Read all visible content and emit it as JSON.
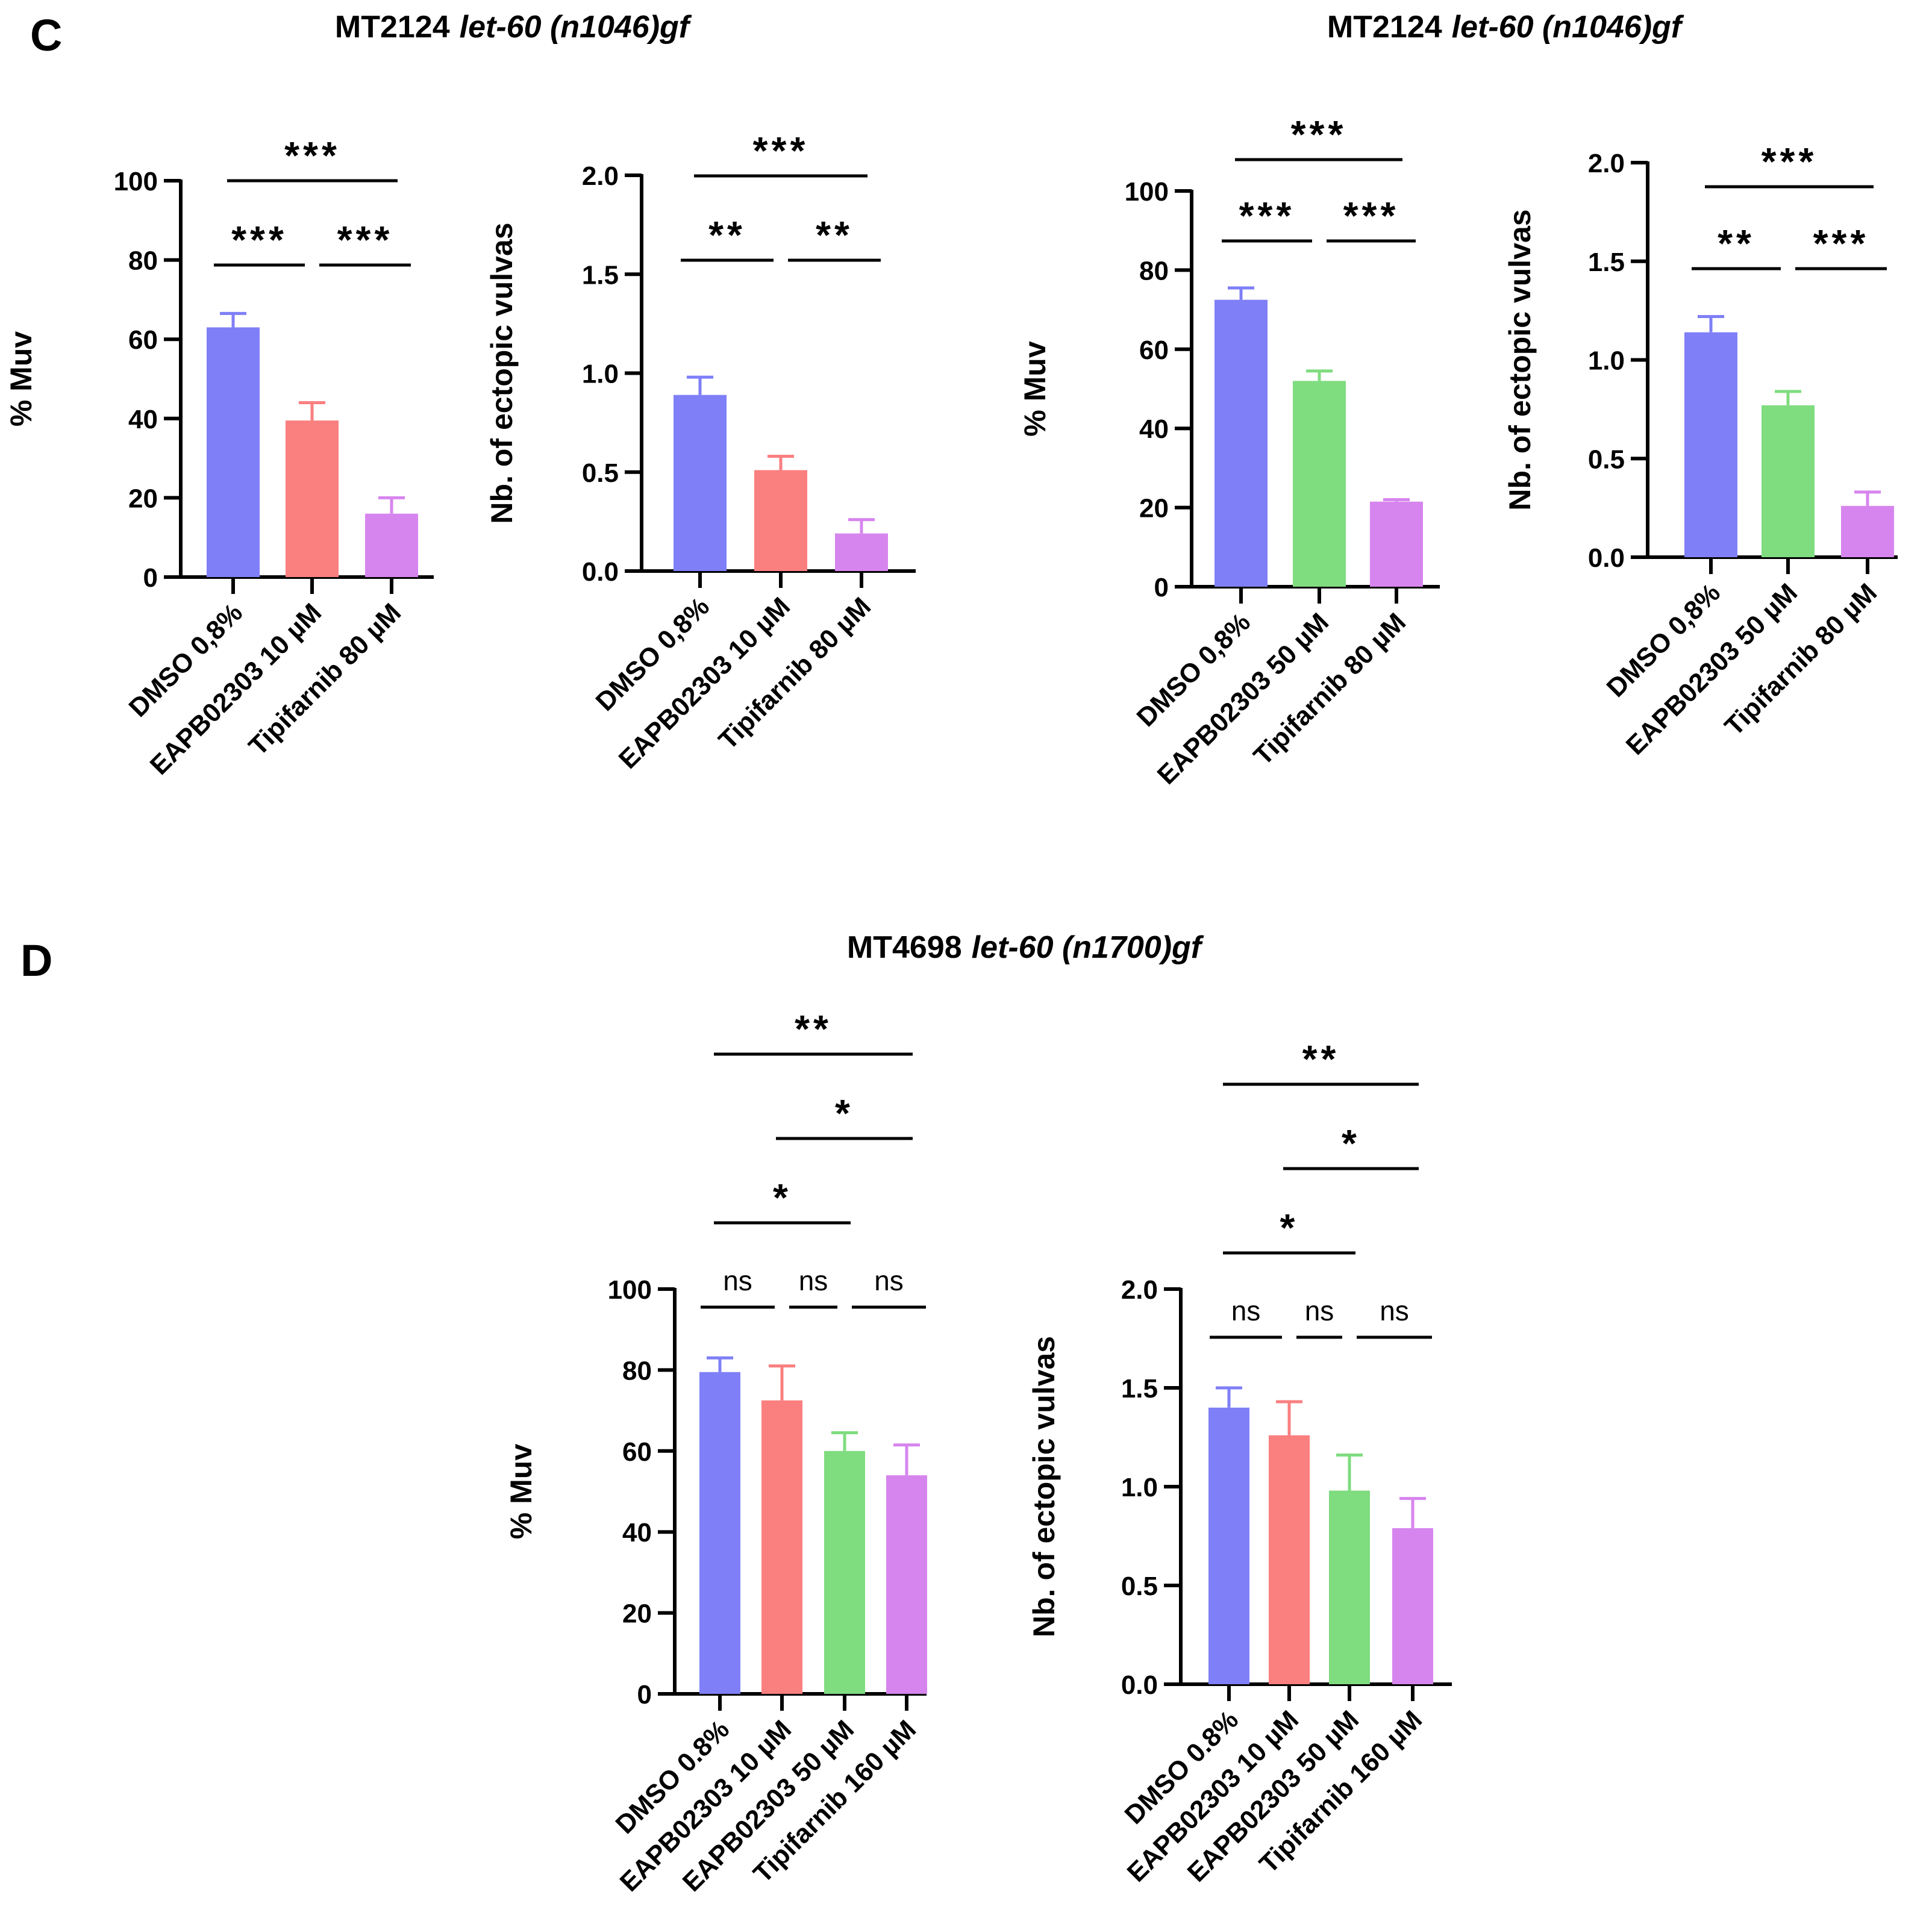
{
  "panels": [
    {
      "letter": "C",
      "title_main": "MT2124",
      "title_italic": "let-60 (n1046)gf"
    },
    {
      "letter": "",
      "title_main": "MT2124",
      "title_italic": "let-60 (n1046)gf"
    },
    {
      "letter": "D",
      "title_main": "MT4698",
      "title_italic": "let-60 (n1700)gf"
    }
  ],
  "colors": {
    "blue": "#7f7ff7",
    "red": "#fa7f7f",
    "green": "#7fdc7f",
    "purple": "#d785ee"
  },
  "chart_data": [
    {
      "type": "bar",
      "panel": "C",
      "title": "MT2124 let-60 (n1046)gf",
      "ylabel": "% Muv",
      "ylim": [
        0,
        100
      ],
      "yticks": [
        "0",
        "20",
        "40",
        "60",
        "80",
        "100"
      ],
      "ytick_values": [
        0,
        20,
        40,
        60,
        80,
        100
      ],
      "categories": [
        "DMSO 0,8%",
        "EAPB02303 10 µM",
        "Tipifarnib 80 µM"
      ],
      "values": [
        63,
        39.5,
        16
      ],
      "errors": [
        3.5,
        4.5,
        4
      ],
      "colors": [
        "#7f7ff7",
        "#fa7f7f",
        "#d785ee"
      ],
      "significance": [
        {
          "from": 0,
          "to": 2,
          "level": 2,
          "label": "***"
        },
        {
          "from": 0,
          "to": 1,
          "level": 1,
          "label": "***"
        },
        {
          "from": 1,
          "to": 2,
          "level": 1,
          "label": "***"
        }
      ]
    },
    {
      "type": "bar",
      "panel": "C",
      "title": "MT2124 let-60 (n1046)gf",
      "ylabel": "Nb. of ectopic vulvas",
      "ylim": [
        0,
        2
      ],
      "yticks": [
        "0.0",
        "0.5",
        "1.0",
        "1.5",
        "2.0"
      ],
      "ytick_values": [
        0,
        0.5,
        1,
        1.5,
        2
      ],
      "categories": [
        "DMSO 0,8%",
        "EAPB02303 10 µM",
        "Tipifarnib 80 µM"
      ],
      "values": [
        0.89,
        0.51,
        0.19
      ],
      "errors": [
        0.09,
        0.07,
        0.07
      ],
      "colors": [
        "#7f7ff7",
        "#fa7f7f",
        "#d785ee"
      ],
      "significance": [
        {
          "from": 0,
          "to": 2,
          "level": 2,
          "label": "***"
        },
        {
          "from": 0,
          "to": 1,
          "level": 1,
          "label": "**"
        },
        {
          "from": 1,
          "to": 2,
          "level": 1,
          "label": "**"
        }
      ]
    },
    {
      "type": "bar",
      "panel": "C",
      "title": "MT2124 let-60 (n1046)gf",
      "ylabel": "% Muv",
      "ylim": [
        0,
        100
      ],
      "yticks": [
        "0",
        "20",
        "40",
        "60",
        "80",
        "100"
      ],
      "ytick_values": [
        0,
        20,
        40,
        60,
        80,
        100
      ],
      "categories": [
        "DMSO 0,8%",
        "EAPB02303 50 µM",
        "Tipifarnib 80 µM"
      ],
      "values": [
        72.5,
        52,
        21.5
      ],
      "errors": [
        3,
        2.5,
        0.5
      ],
      "colors": [
        "#7f7ff7",
        "#7fdc7f",
        "#d785ee"
      ],
      "significance": [
        {
          "from": 0,
          "to": 2,
          "level": 2,
          "label": "***"
        },
        {
          "from": 0,
          "to": 1,
          "level": 1,
          "label": "***"
        },
        {
          "from": 1,
          "to": 2,
          "level": 1,
          "label": "***"
        }
      ]
    },
    {
      "type": "bar",
      "panel": "C",
      "title": "MT2124 let-60 (n1046)gf",
      "ylabel": "Nb. of ectopic vulvas",
      "ylim": [
        0,
        2
      ],
      "yticks": [
        "0.0",
        "0.5",
        "1.0",
        "1.5",
        "2.0"
      ],
      "ytick_values": [
        0,
        0.5,
        1,
        1.5,
        2
      ],
      "categories": [
        "DMSO 0,8%",
        "EAPB02303 50 µM",
        "Tipifarnib 80 µM"
      ],
      "values": [
        1.14,
        0.77,
        0.26
      ],
      "errors": [
        0.08,
        0.07,
        0.07
      ],
      "colors": [
        "#7f7ff7",
        "#7fdc7f",
        "#d785ee"
      ],
      "significance": [
        {
          "from": 0,
          "to": 2,
          "level": 2,
          "label": "***"
        },
        {
          "from": 0,
          "to": 1,
          "level": 1,
          "label": "**"
        },
        {
          "from": 1,
          "to": 2,
          "level": 1,
          "label": "***"
        }
      ]
    },
    {
      "type": "bar",
      "panel": "D",
      "title": "MT4698 let-60 (n1700)gf",
      "ylabel": "% Muv",
      "ylim": [
        0,
        100
      ],
      "yticks": [
        "0",
        "20",
        "40",
        "60",
        "80",
        "100"
      ],
      "ytick_values": [
        0,
        20,
        40,
        60,
        80,
        100
      ],
      "categories": [
        "DMSO 0.8%",
        "EAPB02303 10 µM",
        "EAPB02303 50 µM",
        "Tipifarnib 160 µM"
      ],
      "values": [
        79.5,
        72.5,
        60,
        54
      ],
      "errors": [
        3.5,
        8.5,
        4.5,
        7.5
      ],
      "colors": [
        "#7f7ff7",
        "#fa7f7f",
        "#7fdc7f",
        "#d785ee"
      ],
      "significance": [
        {
          "from": 0,
          "to": 3,
          "level": 4,
          "label": "**"
        },
        {
          "from": 1,
          "to": 3,
          "level": 3,
          "label": "*"
        },
        {
          "from": 0,
          "to": 2,
          "level": 2,
          "label": "*"
        },
        {
          "from": 0,
          "to": 1,
          "level": 1,
          "label": "ns"
        },
        {
          "from": 1,
          "to": 2,
          "level": 1,
          "label": "ns"
        },
        {
          "from": 2,
          "to": 3,
          "level": 1,
          "label": "ns"
        }
      ]
    },
    {
      "type": "bar",
      "panel": "D",
      "title": "MT4698 let-60 (n1700)gf",
      "ylabel": "Nb. of ectopic vulvas",
      "ylim": [
        0,
        2
      ],
      "yticks": [
        "0.0",
        "0.5",
        "1.0",
        "1.5",
        "2.0"
      ],
      "ytick_values": [
        0,
        0.5,
        1,
        1.5,
        2
      ],
      "categories": [
        "DMSO 0.8%",
        "EAPB02303 10 µM",
        "EAPB02303 50 µM",
        "Tipifarnib 160 µM"
      ],
      "values": [
        1.4,
        1.26,
        0.98,
        0.79
      ],
      "errors": [
        0.1,
        0.17,
        0.18,
        0.15
      ],
      "colors": [
        "#7f7ff7",
        "#fa7f7f",
        "#7fdc7f",
        "#d785ee"
      ],
      "significance": [
        {
          "from": 0,
          "to": 3,
          "level": 4,
          "label": "**"
        },
        {
          "from": 1,
          "to": 3,
          "level": 3,
          "label": "*"
        },
        {
          "from": 0,
          "to": 2,
          "level": 2,
          "label": "*"
        },
        {
          "from": 0,
          "to": 1,
          "level": 1,
          "label": "ns"
        },
        {
          "from": 1,
          "to": 2,
          "level": 1,
          "label": "ns"
        },
        {
          "from": 2,
          "to": 3,
          "level": 1,
          "label": "ns"
        }
      ]
    }
  ]
}
